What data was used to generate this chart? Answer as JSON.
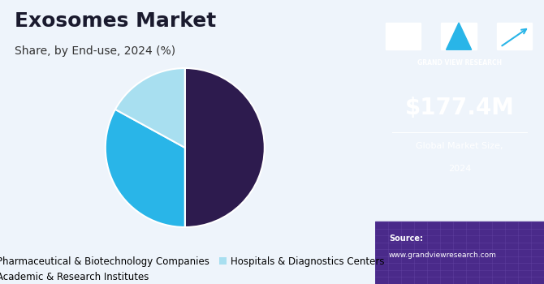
{
  "title": "Exosomes Market",
  "subtitle": "Share, by End-use, 2024 (%)",
  "slices": [
    50,
    33,
    17
  ],
  "labels": [
    "Pharmaceutical & Biotechnology Companies",
    "Academic & Research Institutes",
    "Hospitals & Diagnostics Centers"
  ],
  "colors": [
    "#2d1b4e",
    "#29b5e8",
    "#a8dff0"
  ],
  "legend_colors": [
    "#2d1b4e",
    "#29b5e8",
    "#a8dff0"
  ],
  "bg_left": "#eef4fb",
  "bg_right": "#3d1a6e",
  "market_size": "$177.4M",
  "market_label1": "Global Market Size,",
  "market_label2": "2024",
  "source_label": "Source:",
  "source_url": "www.grandviewresearch.com",
  "gvr_label": "GRAND VIEW RESEARCH",
  "title_fontsize": 18,
  "subtitle_fontsize": 10,
  "legend_fontsize": 8.5
}
